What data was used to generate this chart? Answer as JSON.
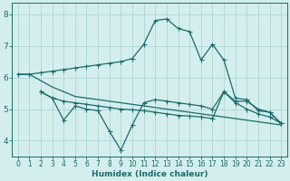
{
  "xlabel": "Humidex (Indice chaleur)",
  "bg_color": "#d4eeee",
  "line_color": "#1a6b6b",
  "grid_color": "#aed4d4",
  "xlim": [
    -0.5,
    23.5
  ],
  "ylim": [
    3.5,
    8.35
  ],
  "xticks": [
    0,
    1,
    2,
    3,
    4,
    5,
    6,
    7,
    8,
    9,
    10,
    11,
    12,
    13,
    14,
    15,
    16,
    17,
    18,
    19,
    20,
    21,
    22,
    23
  ],
  "yticks": [
    4,
    5,
    6,
    7,
    8
  ],
  "line1_x": [
    0,
    1,
    2,
    3,
    4,
    5,
    6,
    7,
    8,
    9,
    10,
    11,
    12,
    13,
    14,
    15,
    16,
    17,
    18,
    19,
    20,
    21,
    22,
    23
  ],
  "line1_y": [
    6.1,
    6.1,
    6.15,
    6.2,
    6.25,
    6.3,
    6.35,
    6.4,
    6.45,
    6.5,
    6.6,
    7.05,
    7.8,
    7.85,
    7.55,
    7.45,
    6.55,
    7.05,
    6.55,
    5.35,
    5.3,
    4.95,
    4.9,
    4.55
  ],
  "line2_x": [
    2,
    3,
    4,
    5,
    6,
    7,
    8,
    9,
    10,
    11,
    12,
    13,
    14,
    15,
    16,
    17,
    18,
    19,
    20,
    21,
    22,
    23
  ],
  "line2_y": [
    5.55,
    5.35,
    4.65,
    5.1,
    5.0,
    4.95,
    4.3,
    3.7,
    4.5,
    5.2,
    5.3,
    5.25,
    5.2,
    5.15,
    5.1,
    5.0,
    5.55,
    5.25,
    5.25,
    5.0,
    4.9,
    4.55
  ],
  "line3_x": [
    2,
    3,
    4,
    5,
    6,
    7,
    8,
    9,
    10,
    11,
    12,
    13,
    14,
    15,
    16,
    17,
    18,
    19,
    20,
    21,
    22,
    23
  ],
  "line3_y": [
    5.55,
    5.35,
    5.25,
    5.2,
    5.15,
    5.1,
    5.05,
    5.0,
    4.98,
    4.95,
    4.9,
    4.85,
    4.8,
    4.78,
    4.75,
    4.7,
    5.55,
    5.2,
    5.0,
    4.85,
    4.75,
    4.55
  ],
  "line4_x": [
    0,
    1,
    2,
    3,
    4,
    5,
    6,
    7,
    8,
    9,
    10,
    11,
    12,
    13,
    14,
    15,
    16,
    17,
    18,
    19,
    20,
    21,
    22,
    23
  ],
  "line4_y": [
    6.1,
    6.1,
    5.9,
    5.7,
    5.55,
    5.4,
    5.35,
    5.3,
    5.25,
    5.2,
    5.15,
    5.1,
    5.05,
    5.0,
    4.95,
    4.9,
    4.85,
    4.8,
    4.75,
    4.7,
    4.65,
    4.6,
    4.55,
    4.5
  ],
  "xlabel_fontsize": 6.5,
  "tick_fontsize_x": 5.5,
  "tick_fontsize_y": 6.5
}
